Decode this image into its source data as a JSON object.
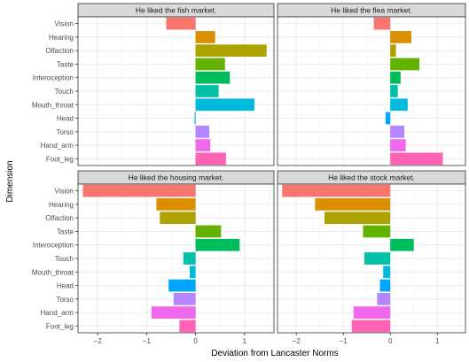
{
  "chart_data": {
    "type": "bar",
    "orientation": "horizontal",
    "xlabel": "Deviation from Lancaster Norms",
    "ylabel": "Dimension",
    "xlim": [
      -2.4,
      1.6
    ],
    "xticks": [
      -2,
      -1,
      0,
      1
    ],
    "xtick_labels": [
      "−2",
      "−1",
      "0",
      "1"
    ],
    "grid": true,
    "legend": "none",
    "categories": [
      "Vision",
      "Hearing",
      "Olfaction",
      "Taste",
      "Interoception",
      "Touch",
      "Mouth_throat",
      "Head",
      "Torso",
      "Hand_arm",
      "Foot_leg"
    ],
    "colors": [
      "#F8766D",
      "#DB8E00",
      "#AEA200",
      "#64B200",
      "#00BD5C",
      "#00C1A7",
      "#00BADE",
      "#00A6FF",
      "#B385FF",
      "#EF67EB",
      "#FF63B6"
    ],
    "panels": [
      {
        "title": "He liked the fish market.",
        "values": [
          -0.6,
          0.4,
          1.45,
          0.6,
          0.7,
          0.47,
          1.2,
          -0.02,
          0.28,
          0.3,
          0.62
        ]
      },
      {
        "title": "He liked the flea market.",
        "values": [
          -0.35,
          0.45,
          0.12,
          0.62,
          0.22,
          0.16,
          0.37,
          -0.1,
          0.3,
          0.33,
          1.12
        ]
      },
      {
        "title": "He liked the housing market.",
        "values": [
          -2.3,
          -0.8,
          -0.73,
          0.52,
          0.9,
          -0.25,
          -0.12,
          -0.55,
          -0.45,
          -0.9,
          -0.33
        ]
      },
      {
        "title": "He liked the stock market.",
        "values": [
          -2.3,
          -1.6,
          -1.4,
          -0.58,
          0.5,
          -0.55,
          -0.15,
          -0.22,
          -0.28,
          -0.78,
          -0.82
        ]
      }
    ]
  }
}
